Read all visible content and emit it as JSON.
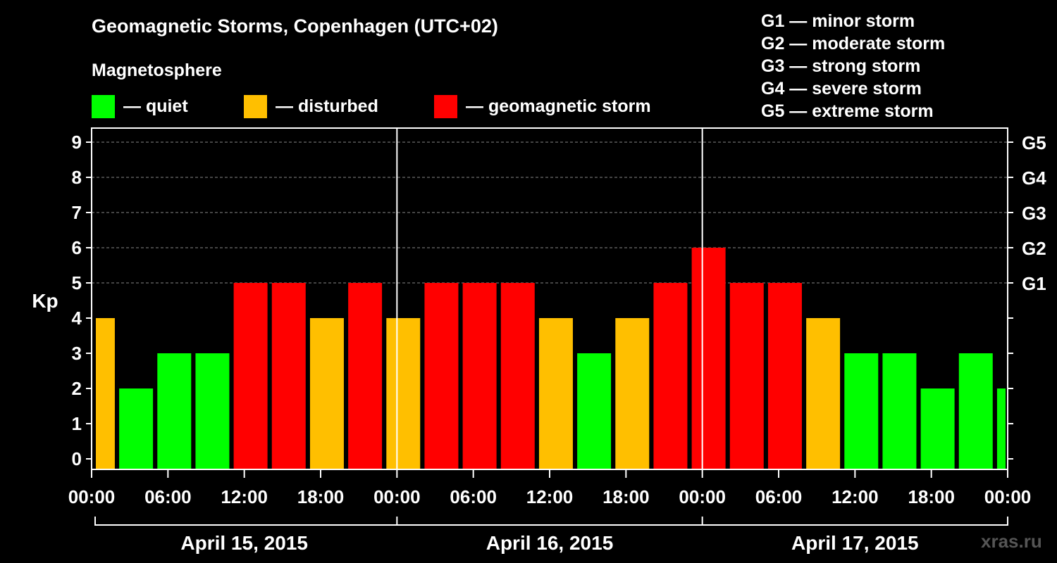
{
  "header": {
    "title": "Geomagnetic Storms, Copenhagen (UTC+02)",
    "subtitle": "Magnetosphere"
  },
  "legend": [
    {
      "label": "— quiet",
      "color": "#00ff00"
    },
    {
      "label": "— disturbed",
      "color": "#ffbf00"
    },
    {
      "label": "— geomagnetic storm",
      "color": "#ff0000"
    }
  ],
  "storm_levels": [
    "G1 — minor storm",
    "G2 — moderate storm",
    "G3 — strong storm",
    "G4 — severe storm",
    "G5 — extreme storm"
  ],
  "watermark": "xras.ru",
  "colors": {
    "quiet": "#00ff00",
    "disturbed": "#ffbf00",
    "storm": "#ff0000",
    "background": "#000000",
    "axis": "#ffffff"
  },
  "chart_data": {
    "type": "bar",
    "ylabel": "Kp",
    "ylim": [
      0,
      9
    ],
    "y_ticks": [
      "0",
      "1",
      "2",
      "3",
      "4",
      "5",
      "6",
      "7",
      "8",
      "9"
    ],
    "right_axis_ticks": [
      {
        "kp": 5,
        "label": "G1"
      },
      {
        "kp": 6,
        "label": "G2"
      },
      {
        "kp": 7,
        "label": "G3"
      },
      {
        "kp": 8,
        "label": "G4"
      },
      {
        "kp": 9,
        "label": "G5"
      }
    ],
    "x_tick_labels": [
      "00:00",
      "06:00",
      "12:00",
      "18:00",
      "00:00",
      "06:00",
      "12:00",
      "18:00",
      "00:00",
      "06:00",
      "12:00",
      "18:00",
      "00:00"
    ],
    "day_labels": [
      "April 15, 2015",
      "April 16, 2015",
      "April 17, 2015"
    ],
    "x_range_hours": [
      0,
      72
    ],
    "bar_interval_hours": 3,
    "first_bar_start_hour": -1,
    "values": [
      4,
      2,
      3,
      3,
      5,
      5,
      4,
      5,
      4,
      5,
      5,
      5,
      4,
      3,
      4,
      5,
      6,
      5,
      5,
      4,
      3,
      3,
      2,
      3,
      2
    ],
    "color_rule": {
      "quiet_max": 3,
      "disturbed": 4,
      "storm_min": 5
    },
    "grid": "dashed horizontal at Kp 5–9"
  }
}
